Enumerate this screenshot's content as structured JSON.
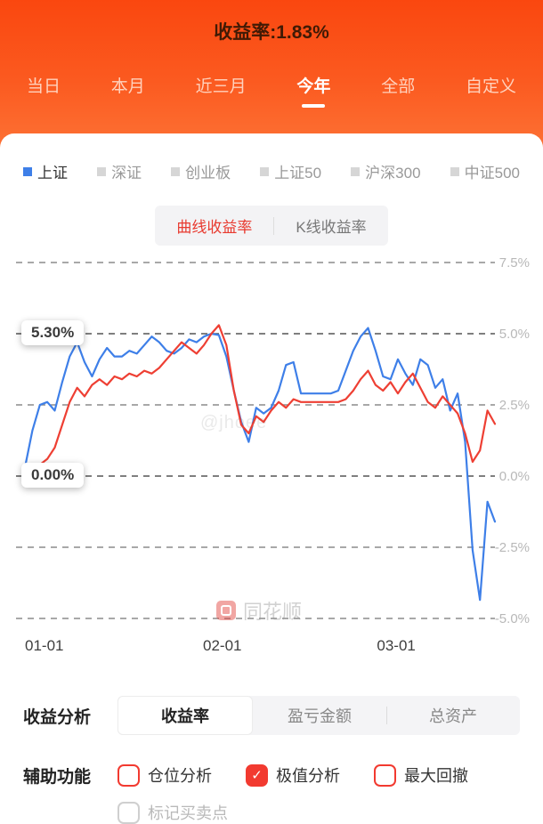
{
  "header": {
    "title": "收益率:1.83%",
    "tabs": [
      {
        "label": "当日",
        "active": false
      },
      {
        "label": "本月",
        "active": false
      },
      {
        "label": "近三月",
        "active": false
      },
      {
        "label": "今年",
        "active": true
      },
      {
        "label": "全部",
        "active": false
      },
      {
        "label": "自定义",
        "active": false
      }
    ]
  },
  "legend": {
    "items": [
      {
        "label": "上证",
        "active": true,
        "color": "#3e7fe8"
      },
      {
        "label": "深证",
        "active": false
      },
      {
        "label": "创业板",
        "active": false
      },
      {
        "label": "上证50",
        "active": false
      },
      {
        "label": "沪深300",
        "active": false
      },
      {
        "label": "中证500",
        "active": false
      }
    ]
  },
  "chart_toggle": {
    "options": [
      {
        "label": "曲线收益率",
        "active": true
      },
      {
        "label": "K线收益率",
        "active": false
      }
    ]
  },
  "chart_data": {
    "type": "line",
    "x_tick_labels": [
      "01-01",
      "02-01",
      "03-01"
    ],
    "x_tick_pos": [
      0,
      0.42,
      0.79
    ],
    "y_ticks": [
      "7.5%",
      "5.0%",
      "2.5%",
      "0.0%",
      "-2.5%",
      "-5.0%"
    ],
    "y_tick_values": [
      7.5,
      5,
      2.5,
      0,
      -2.5,
      -5
    ],
    "ylim": [
      -5.8,
      8.0
    ],
    "grid": "horizontal-dashed",
    "annotations": {
      "max_label": "5.30%",
      "max_value": 5.3,
      "min_label": "0.00%",
      "min_value": 0.0
    },
    "series": [
      {
        "name": "上证",
        "color": "#3e7fe8",
        "values": [
          0.3,
          1.6,
          2.5,
          2.6,
          2.3,
          3.3,
          4.2,
          4.7,
          4.0,
          3.5,
          4.1,
          4.5,
          4.2,
          4.2,
          4.4,
          4.3,
          4.6,
          4.9,
          4.7,
          4.4,
          4.3,
          4.5,
          4.8,
          4.7,
          4.9,
          5.0,
          4.95,
          4.2,
          3.0,
          1.9,
          1.2,
          2.4,
          2.2,
          2.4,
          3.0,
          3.9,
          4.0,
          2.9,
          2.9,
          2.9,
          2.9,
          2.9,
          3.0,
          3.7,
          4.4,
          4.9,
          5.2,
          4.4,
          3.5,
          3.4,
          4.1,
          3.6,
          3.2,
          4.1,
          3.9,
          3.1,
          3.4,
          2.3,
          2.9,
          1.2,
          -2.6,
          -4.35,
          -0.9,
          -1.6
        ]
      },
      {
        "name": "收益率",
        "color": "#ee3f33",
        "values": [
          0.0,
          0.2,
          0.4,
          0.6,
          1.0,
          1.8,
          2.6,
          3.1,
          2.8,
          3.2,
          3.4,
          3.2,
          3.5,
          3.4,
          3.6,
          3.5,
          3.7,
          3.6,
          3.8,
          4.1,
          4.4,
          4.7,
          4.5,
          4.3,
          4.6,
          5.0,
          5.3,
          4.6,
          3.0,
          1.8,
          1.5,
          2.1,
          1.9,
          2.3,
          2.6,
          2.4,
          2.7,
          2.6,
          2.6,
          2.6,
          2.6,
          2.6,
          2.6,
          2.7,
          3.0,
          3.4,
          3.7,
          3.2,
          3.0,
          3.3,
          2.9,
          3.3,
          3.6,
          3.1,
          2.6,
          2.4,
          2.8,
          2.5,
          2.2,
          1.5,
          0.5,
          0.9,
          2.3,
          1.83
        ]
      }
    ]
  },
  "watermarks": {
    "center": "@jhoee",
    "brand": "同花顺"
  },
  "analysis": {
    "label": "收益分析",
    "tabs": [
      {
        "label": "收益率",
        "active": true
      },
      {
        "label": "盈亏金额",
        "active": false
      },
      {
        "label": "总资产",
        "active": false
      }
    ]
  },
  "aux": {
    "label": "辅助功能",
    "options": [
      {
        "label": "仓位分析",
        "checked": false,
        "disabled": false
      },
      {
        "label": "极值分析",
        "checked": true,
        "disabled": false
      },
      {
        "label": "最大回撤",
        "checked": false,
        "disabled": false
      },
      {
        "label": "标记买卖点",
        "checked": false,
        "disabled": true
      }
    ]
  }
}
